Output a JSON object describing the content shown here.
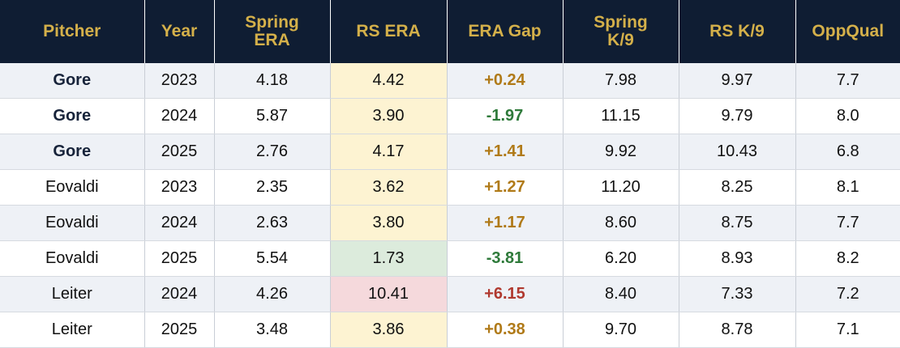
{
  "table": {
    "headers": [
      {
        "line1": "Pitcher",
        "line2": ""
      },
      {
        "line1": "Year",
        "line2": ""
      },
      {
        "line1": "Spring",
        "line2": "ERA"
      },
      {
        "line1": "RS ERA",
        "line2": ""
      },
      {
        "line1": "ERA Gap",
        "line2": ""
      },
      {
        "line1": "Spring",
        "line2": "K/9"
      },
      {
        "line1": "RS K/9",
        "line2": ""
      },
      {
        "line1": "OppQual",
        "line2": ""
      }
    ],
    "rows": [
      {
        "pitcher": "Gore",
        "year": "2023",
        "spring_era": "4.18",
        "rs_era": "4.42",
        "era_gap": "+0.24",
        "spring_k9": "7.98",
        "rs_k9": "9.97",
        "oppqual": "7.7"
      },
      {
        "pitcher": "Gore",
        "year": "2024",
        "spring_era": "5.87",
        "rs_era": "3.90",
        "era_gap": "-1.97",
        "spring_k9": "11.15",
        "rs_k9": "9.79",
        "oppqual": "8.0"
      },
      {
        "pitcher": "Gore",
        "year": "2025",
        "spring_era": "2.76",
        "rs_era": "4.17",
        "era_gap": "+1.41",
        "spring_k9": "9.92",
        "rs_k9": "10.43",
        "oppqual": "6.8"
      },
      {
        "pitcher": "Eovaldi",
        "year": "2023",
        "spring_era": "2.35",
        "rs_era": "3.62",
        "era_gap": "+1.27",
        "spring_k9": "11.20",
        "rs_k9": "8.25",
        "oppqual": "8.1"
      },
      {
        "pitcher": "Eovaldi",
        "year": "2024",
        "spring_era": "2.63",
        "rs_era": "3.80",
        "era_gap": "+1.17",
        "spring_k9": "8.60",
        "rs_k9": "8.75",
        "oppqual": "7.7"
      },
      {
        "pitcher": "Eovaldi",
        "year": "2025",
        "spring_era": "5.54",
        "rs_era": "1.73",
        "era_gap": "-3.81",
        "spring_k9": "6.20",
        "rs_k9": "8.93",
        "oppqual": "8.2"
      },
      {
        "pitcher": "Leiter",
        "year": "2024",
        "spring_era": "4.26",
        "rs_era": "10.41",
        "era_gap": "+6.15",
        "spring_k9": "8.40",
        "rs_k9": "7.33",
        "oppqual": "7.2"
      },
      {
        "pitcher": "Leiter",
        "year": "2025",
        "spring_era": "3.48",
        "rs_era": "3.86",
        "era_gap": "+0.38",
        "spring_k9": "9.70",
        "rs_k9": "8.78",
        "oppqual": "7.1"
      }
    ]
  },
  "colors": {
    "header_bg": "#0f1d33",
    "header_text": "#d4b04a",
    "row_alt_bg": "#eef1f6",
    "rs_era_neutral": "#fdf3d2",
    "rs_era_good": "#dcebdc",
    "rs_era_bad": "#f5d9dc",
    "gap_positive": "#b07a18",
    "gap_negative": "#2e7a3a",
    "gap_large": "#b0392f"
  }
}
